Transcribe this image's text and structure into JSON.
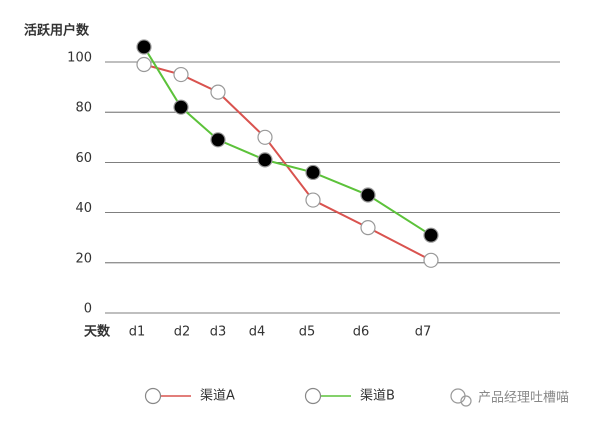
{
  "chart_data": {
    "type": "line",
    "y_title": "活跃用户数",
    "x_title": "天数",
    "categories": [
      "d1",
      "d2",
      "d3",
      "d4",
      "d5",
      "d6",
      "d7"
    ],
    "series": [
      {
        "name": "渠道A",
        "color": "#d9534f",
        "marker_fill": "#ffffff",
        "values": [
          99,
          95,
          88,
          70,
          45,
          34,
          21
        ]
      },
      {
        "name": "渠道B",
        "color": "#5cc23a",
        "marker_fill": "#000000",
        "values": [
          106,
          82,
          69,
          61,
          56,
          47,
          31
        ]
      }
    ],
    "ylim": [
      0,
      100
    ],
    "yticks": [
      0,
      20,
      40,
      60,
      80,
      100
    ],
    "grid": true,
    "watermark": "产品经理吐槽喵"
  }
}
